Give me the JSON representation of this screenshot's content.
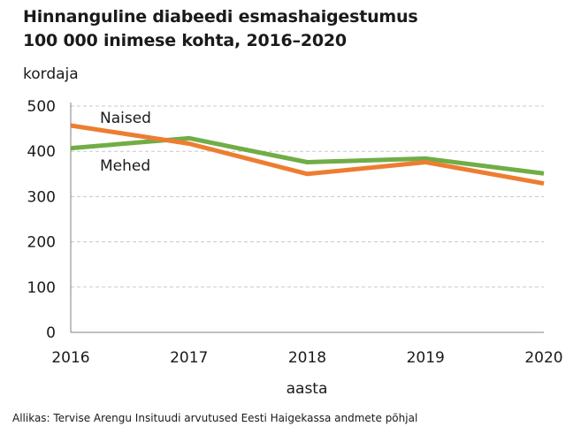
{
  "chart_data": {
    "type": "line",
    "title": "Hinnanguline diabeedi esmashaigestumus",
    "subtitle": "100 000 inimese kohta, 2016–2020",
    "ylabel": "kordaja",
    "xlabel": "aasta",
    "x": [
      "2016",
      "2017",
      "2018",
      "2019",
      "2020"
    ],
    "ylim": [
      0,
      500
    ],
    "yticks": [
      "0",
      "100",
      "200",
      "300",
      "400",
      "500"
    ],
    "grid": true,
    "series": [
      {
        "name": "Naised",
        "color": "#ED7D31",
        "values": [
          457,
          417,
          350,
          376,
          329
        ]
      },
      {
        "name": "Mehed",
        "color": "#70AD47",
        "values": [
          407,
          429,
          376,
          384,
          351
        ]
      }
    ],
    "source": "Allikas: Tervise Arengu Insituudi arvutused Eesti Haigekassa andmete põhjal"
  }
}
